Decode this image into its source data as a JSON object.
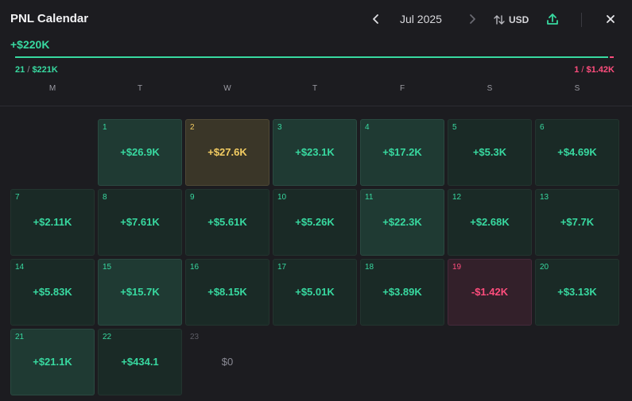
{
  "header": {
    "title": "PNL Calendar",
    "month": "Jul 2025",
    "currency": "USD"
  },
  "summary": {
    "total": "+$220K",
    "win_days": "21",
    "win_amount": "$221K",
    "loss_days": "1",
    "loss_amount": "$1.42K",
    "separator": "/"
  },
  "weekdays": [
    "M",
    "T",
    "W",
    "T",
    "F",
    "S",
    "S"
  ],
  "days": [
    {
      "day": "1",
      "value": "+$26.9K",
      "kind": "strong"
    },
    {
      "day": "2",
      "value": "+$27.6K",
      "kind": "best"
    },
    {
      "day": "3",
      "value": "+$23.1K",
      "kind": "strong"
    },
    {
      "day": "4",
      "value": "+$17.2K",
      "kind": "strong"
    },
    {
      "day": "5",
      "value": "+$5.3K",
      "kind": "normal"
    },
    {
      "day": "6",
      "value": "+$4.69K",
      "kind": "normal"
    },
    {
      "day": "7",
      "value": "+$2.11K",
      "kind": "normal"
    },
    {
      "day": "8",
      "value": "+$7.61K",
      "kind": "normal"
    },
    {
      "day": "9",
      "value": "+$5.61K",
      "kind": "normal"
    },
    {
      "day": "10",
      "value": "+$5.26K",
      "kind": "normal"
    },
    {
      "day": "11",
      "value": "+$22.3K",
      "kind": "strong"
    },
    {
      "day": "12",
      "value": "+$2.68K",
      "kind": "normal"
    },
    {
      "day": "13",
      "value": "+$7.7K",
      "kind": "normal"
    },
    {
      "day": "14",
      "value": "+$5.83K",
      "kind": "normal"
    },
    {
      "day": "15",
      "value": "+$15.7K",
      "kind": "strong"
    },
    {
      "day": "16",
      "value": "+$8.15K",
      "kind": "normal"
    },
    {
      "day": "17",
      "value": "+$5.01K",
      "kind": "normal"
    },
    {
      "day": "18",
      "value": "+$3.89K",
      "kind": "normal"
    },
    {
      "day": "19",
      "value": "-$1.42K",
      "kind": "negative"
    },
    {
      "day": "20",
      "value": "+$3.13K",
      "kind": "normal"
    },
    {
      "day": "21",
      "value": "+$21.1K",
      "kind": "strong"
    },
    {
      "day": "22",
      "value": "+$434.1",
      "kind": "normal"
    },
    {
      "day": "23",
      "value": "$0",
      "kind": "zero"
    }
  ],
  "colors": {
    "positive": "#38d9a0",
    "negative": "#ff4d7d",
    "best": "#f4cd62",
    "background": "#1c1c20"
  },
  "icons": {
    "prev": "chevron-left-icon",
    "next": "chevron-right-icon",
    "currency": "swap-vertical-icon",
    "export": "upload-icon",
    "close": "close-icon"
  }
}
